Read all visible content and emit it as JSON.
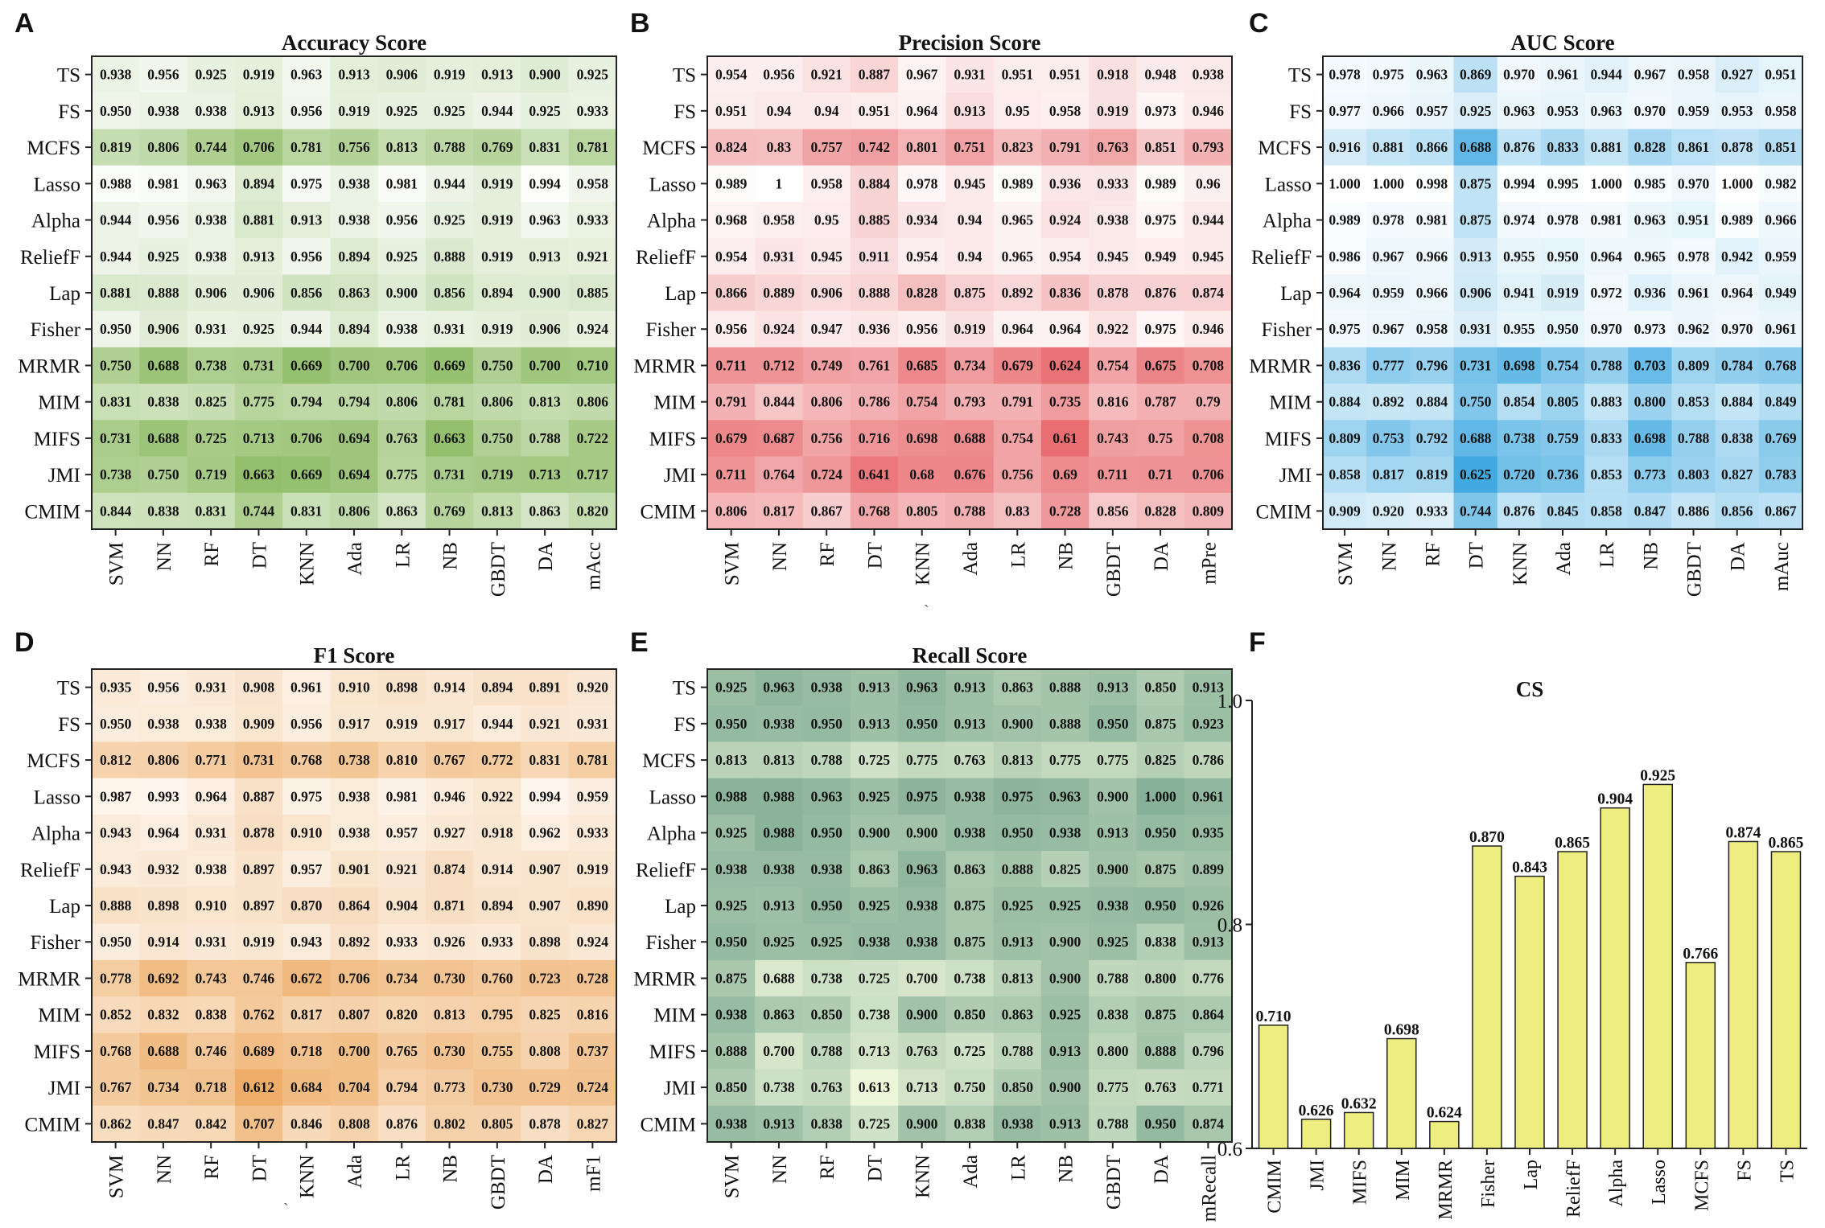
{
  "figure": {
    "row_labels": [
      "TS",
      "FS",
      "MCFS",
      "Lasso",
      "Alpha",
      "ReliefF",
      "Lap",
      "Fisher",
      "MRMR",
      "MIM",
      "MIFS",
      "JMI",
      "CMIM"
    ],
    "stray_marks": [
      "`"
    ]
  },
  "chart_data": [
    {
      "panel": "A",
      "type": "heatmap",
      "title": "Accuracy Score",
      "palette": {
        "low": "#93bf6c",
        "high": "#ffffff",
        "vmin": 0.66,
        "vmax": 1.0
      },
      "rows": [
        "TS",
        "FS",
        "MCFS",
        "Lasso",
        "Alpha",
        "ReliefF",
        "Lap",
        "Fisher",
        "MRMR",
        "MIM",
        "MIFS",
        "JMI",
        "CMIM"
      ],
      "cols": [
        "SVM",
        "NN",
        "RF",
        "DT",
        "KNN",
        "Ada",
        "LR",
        "NB",
        "GBDT",
        "DA",
        "mAcc"
      ],
      "values": [
        [
          "0.938",
          "0.956",
          "0.925",
          "0.919",
          "0.963",
          "0.913",
          "0.906",
          "0.919",
          "0.913",
          "0.900",
          "0.925"
        ],
        [
          "0.950",
          "0.938",
          "0.938",
          "0.913",
          "0.956",
          "0.919",
          "0.925",
          "0.925",
          "0.944",
          "0.925",
          "0.933"
        ],
        [
          "0.819",
          "0.806",
          "0.744",
          "0.706",
          "0.781",
          "0.756",
          "0.813",
          "0.788",
          "0.769",
          "0.831",
          "0.781"
        ],
        [
          "0.988",
          "0.981",
          "0.963",
          "0.894",
          "0.975",
          "0.938",
          "0.981",
          "0.944",
          "0.919",
          "0.994",
          "0.958"
        ],
        [
          "0.944",
          "0.956",
          "0.938",
          "0.881",
          "0.913",
          "0.938",
          "0.956",
          "0.925",
          "0.919",
          "0.963",
          "0.933"
        ],
        [
          "0.944",
          "0.925",
          "0.938",
          "0.913",
          "0.956",
          "0.894",
          "0.925",
          "0.888",
          "0.919",
          "0.913",
          "0.921"
        ],
        [
          "0.881",
          "0.888",
          "0.906",
          "0.906",
          "0.856",
          "0.863",
          "0.900",
          "0.856",
          "0.894",
          "0.900",
          "0.885"
        ],
        [
          "0.950",
          "0.906",
          "0.931",
          "0.925",
          "0.944",
          "0.894",
          "0.938",
          "0.931",
          "0.919",
          "0.906",
          "0.924"
        ],
        [
          "0.750",
          "0.688",
          "0.738",
          "0.731",
          "0.669",
          "0.700",
          "0.706",
          "0.669",
          "0.750",
          "0.700",
          "0.710"
        ],
        [
          "0.831",
          "0.838",
          "0.825",
          "0.775",
          "0.794",
          "0.794",
          "0.806",
          "0.781",
          "0.806",
          "0.813",
          "0.806"
        ],
        [
          "0.731",
          "0.688",
          "0.725",
          "0.713",
          "0.706",
          "0.694",
          "0.763",
          "0.663",
          "0.750",
          "0.788",
          "0.722"
        ],
        [
          "0.738",
          "0.750",
          "0.719",
          "0.663",
          "0.669",
          "0.694",
          "0.775",
          "0.731",
          "0.719",
          "0.713",
          "0.717"
        ],
        [
          "0.844",
          "0.838",
          "0.831",
          "0.744",
          "0.831",
          "0.806",
          "0.863",
          "0.769",
          "0.813",
          "0.863",
          "0.820"
        ]
      ]
    },
    {
      "panel": "B",
      "type": "heatmap",
      "title": "Precision Score",
      "palette": {
        "low": "#e8696d",
        "high": "#ffffff",
        "vmin": 0.6,
        "vmax": 1.0
      },
      "rows": [
        "TS",
        "FS",
        "MCFS",
        "Lasso",
        "Alpha",
        "ReliefF",
        "Lap",
        "Fisher",
        "MRMR",
        "MIM",
        "MIFS",
        "JMI",
        "CMIM"
      ],
      "cols": [
        "SVM",
        "NN",
        "RF",
        "DT",
        "KNN",
        "Ada",
        "LR",
        "NB",
        "GBDT",
        "DA",
        "mPre"
      ],
      "values": [
        [
          "0.954",
          "0.956",
          "0.921",
          "0.887",
          "0.967",
          "0.931",
          "0.951",
          "0.951",
          "0.918",
          "0.948",
          "0.938"
        ],
        [
          "0.951",
          "0.94",
          "0.94",
          "0.951",
          "0.964",
          "0.913",
          "0.95",
          "0.958",
          "0.919",
          "0.973",
          "0.946"
        ],
        [
          "0.824",
          "0.83",
          "0.757",
          "0.742",
          "0.801",
          "0.751",
          "0.823",
          "0.791",
          "0.763",
          "0.851",
          "0.793"
        ],
        [
          "0.989",
          "1",
          "0.958",
          "0.884",
          "0.978",
          "0.945",
          "0.989",
          "0.936",
          "0.933",
          "0.989",
          "0.96"
        ],
        [
          "0.968",
          "0.958",
          "0.95",
          "0.885",
          "0.934",
          "0.94",
          "0.965",
          "0.924",
          "0.938",
          "0.975",
          "0.944"
        ],
        [
          "0.954",
          "0.931",
          "0.945",
          "0.911",
          "0.954",
          "0.94",
          "0.965",
          "0.954",
          "0.945",
          "0.949",
          "0.945"
        ],
        [
          "0.866",
          "0.889",
          "0.906",
          "0.888",
          "0.828",
          "0.875",
          "0.892",
          "0.836",
          "0.878",
          "0.876",
          "0.874"
        ],
        [
          "0.956",
          "0.924",
          "0.947",
          "0.936",
          "0.956",
          "0.919",
          "0.964",
          "0.964",
          "0.922",
          "0.975",
          "0.946"
        ],
        [
          "0.711",
          "0.712",
          "0.749",
          "0.761",
          "0.685",
          "0.734",
          "0.679",
          "0.624",
          "0.754",
          "0.675",
          "0.708"
        ],
        [
          "0.791",
          "0.844",
          "0.806",
          "0.786",
          "0.754",
          "0.793",
          "0.791",
          "0.735",
          "0.816",
          "0.787",
          "0.79"
        ],
        [
          "0.679",
          "0.687",
          "0.756",
          "0.716",
          "0.698",
          "0.688",
          "0.754",
          "0.61",
          "0.743",
          "0.75",
          "0.708"
        ],
        [
          "0.711",
          "0.764",
          "0.724",
          "0.641",
          "0.68",
          "0.676",
          "0.756",
          "0.69",
          "0.711",
          "0.71",
          "0.706"
        ],
        [
          "0.806",
          "0.817",
          "0.867",
          "0.768",
          "0.805",
          "0.788",
          "0.83",
          "0.728",
          "0.856",
          "0.828",
          "0.809"
        ]
      ]
    },
    {
      "panel": "C",
      "type": "heatmap",
      "title": "AUC Score",
      "palette": {
        "low": "#3fa9e0",
        "high": "#ffffff",
        "vmin": 0.62,
        "vmax": 1.0
      },
      "rows": [
        "TS",
        "FS",
        "MCFS",
        "Lasso",
        "Alpha",
        "ReliefF",
        "Lap",
        "Fisher",
        "MRMR",
        "MIM",
        "MIFS",
        "JMI",
        "CMIM"
      ],
      "cols": [
        "SVM",
        "NN",
        "RF",
        "DT",
        "KNN",
        "Ada",
        "LR",
        "NB",
        "GBDT",
        "DA",
        "mAuc"
      ],
      "values": [
        [
          "0.978",
          "0.975",
          "0.963",
          "0.869",
          "0.970",
          "0.961",
          "0.944",
          "0.967",
          "0.958",
          "0.927",
          "0.951"
        ],
        [
          "0.977",
          "0.966",
          "0.957",
          "0.925",
          "0.963",
          "0.953",
          "0.963",
          "0.970",
          "0.959",
          "0.953",
          "0.958"
        ],
        [
          "0.916",
          "0.881",
          "0.866",
          "0.688",
          "0.876",
          "0.833",
          "0.881",
          "0.828",
          "0.861",
          "0.878",
          "0.851"
        ],
        [
          "1.000",
          "1.000",
          "0.998",
          "0.875",
          "0.994",
          "0.995",
          "1.000",
          "0.985",
          "0.970",
          "1.000",
          "0.982"
        ],
        [
          "0.989",
          "0.978",
          "0.981",
          "0.875",
          "0.974",
          "0.978",
          "0.981",
          "0.963",
          "0.951",
          "0.989",
          "0.966"
        ],
        [
          "0.986",
          "0.967",
          "0.966",
          "0.913",
          "0.955",
          "0.950",
          "0.964",
          "0.965",
          "0.978",
          "0.942",
          "0.959"
        ],
        [
          "0.964",
          "0.959",
          "0.966",
          "0.906",
          "0.941",
          "0.919",
          "0.972",
          "0.936",
          "0.961",
          "0.964",
          "0.949"
        ],
        [
          "0.975",
          "0.967",
          "0.958",
          "0.931",
          "0.955",
          "0.950",
          "0.970",
          "0.973",
          "0.962",
          "0.970",
          "0.961"
        ],
        [
          "0.836",
          "0.777",
          "0.796",
          "0.731",
          "0.698",
          "0.754",
          "0.788",
          "0.703",
          "0.809",
          "0.784",
          "0.768"
        ],
        [
          "0.884",
          "0.892",
          "0.884",
          "0.750",
          "0.854",
          "0.805",
          "0.883",
          "0.800",
          "0.853",
          "0.884",
          "0.849"
        ],
        [
          "0.809",
          "0.753",
          "0.792",
          "0.688",
          "0.738",
          "0.759",
          "0.833",
          "0.698",
          "0.788",
          "0.838",
          "0.769"
        ],
        [
          "0.858",
          "0.817",
          "0.819",
          "0.625",
          "0.720",
          "0.736",
          "0.853",
          "0.773",
          "0.803",
          "0.827",
          "0.783"
        ],
        [
          "0.909",
          "0.920",
          "0.933",
          "0.744",
          "0.876",
          "0.845",
          "0.858",
          "0.847",
          "0.886",
          "0.856",
          "0.867"
        ]
      ]
    },
    {
      "panel": "D",
      "type": "heatmap",
      "title": "F1 Score",
      "palette": {
        "low": "#eeae69",
        "high": "#fdf6ee",
        "vmin": 0.61,
        "vmax": 1.0
      },
      "rows": [
        "TS",
        "FS",
        "MCFS",
        "Lasso",
        "Alpha",
        "ReliefF",
        "Lap",
        "Fisher",
        "MRMR",
        "MIM",
        "MIFS",
        "JMI",
        "CMIM"
      ],
      "cols": [
        "SVM",
        "NN",
        "RF",
        "DT",
        "KNN",
        "Ada",
        "LR",
        "NB",
        "GBDT",
        "DA",
        "mF1"
      ],
      "values": [
        [
          "0.935",
          "0.956",
          "0.931",
          "0.908",
          "0.961",
          "0.910",
          "0.898",
          "0.914",
          "0.894",
          "0.891",
          "0.920"
        ],
        [
          "0.950",
          "0.938",
          "0.938",
          "0.909",
          "0.956",
          "0.917",
          "0.919",
          "0.917",
          "0.944",
          "0.921",
          "0.931"
        ],
        [
          "0.812",
          "0.806",
          "0.771",
          "0.731",
          "0.768",
          "0.738",
          "0.810",
          "0.767",
          "0.772",
          "0.831",
          "0.781"
        ],
        [
          "0.987",
          "0.993",
          "0.964",
          "0.887",
          "0.975",
          "0.938",
          "0.981",
          "0.946",
          "0.922",
          "0.994",
          "0.959"
        ],
        [
          "0.943",
          "0.964",
          "0.931",
          "0.878",
          "0.910",
          "0.938",
          "0.957",
          "0.927",
          "0.918",
          "0.962",
          "0.933"
        ],
        [
          "0.943",
          "0.932",
          "0.938",
          "0.897",
          "0.957",
          "0.901",
          "0.921",
          "0.874",
          "0.914",
          "0.907",
          "0.919"
        ],
        [
          "0.888",
          "0.898",
          "0.910",
          "0.897",
          "0.870",
          "0.864",
          "0.904",
          "0.871",
          "0.894",
          "0.907",
          "0.890"
        ],
        [
          "0.950",
          "0.914",
          "0.931",
          "0.919",
          "0.943",
          "0.892",
          "0.933",
          "0.926",
          "0.933",
          "0.898",
          "0.924"
        ],
        [
          "0.778",
          "0.692",
          "0.743",
          "0.746",
          "0.672",
          "0.706",
          "0.734",
          "0.730",
          "0.760",
          "0.723",
          "0.728"
        ],
        [
          "0.852",
          "0.832",
          "0.838",
          "0.762",
          "0.817",
          "0.807",
          "0.820",
          "0.813",
          "0.795",
          "0.825",
          "0.816"
        ],
        [
          "0.768",
          "0.688",
          "0.746",
          "0.689",
          "0.718",
          "0.700",
          "0.765",
          "0.730",
          "0.755",
          "0.808",
          "0.737"
        ],
        [
          "0.767",
          "0.734",
          "0.718",
          "0.612",
          "0.684",
          "0.704",
          "0.794",
          "0.773",
          "0.730",
          "0.729",
          "0.724"
        ],
        [
          "0.862",
          "0.847",
          "0.842",
          "0.707",
          "0.846",
          "0.808",
          "0.876",
          "0.802",
          "0.805",
          "0.878",
          "0.827"
        ]
      ]
    },
    {
      "panel": "E",
      "type": "heatmap",
      "title": "Recall Score",
      "palette": {
        "low": "#f1f8dc",
        "high": "#87b198",
        "vmin": 0.6,
        "vmax": 1.0
      },
      "rows": [
        "TS",
        "FS",
        "MCFS",
        "Lasso",
        "Alpha",
        "ReliefF",
        "Lap",
        "Fisher",
        "MRMR",
        "MIM",
        "MIFS",
        "JMI",
        "CMIM"
      ],
      "cols": [
        "SVM",
        "NN",
        "RF",
        "DT",
        "KNN",
        "Ada",
        "LR",
        "NB",
        "GBDT",
        "DA",
        "mRecall"
      ],
      "values": [
        [
          "0.925",
          "0.963",
          "0.938",
          "0.913",
          "0.963",
          "0.913",
          "0.863",
          "0.888",
          "0.913",
          "0.850",
          "0.913"
        ],
        [
          "0.950",
          "0.938",
          "0.950",
          "0.913",
          "0.950",
          "0.913",
          "0.900",
          "0.888",
          "0.950",
          "0.875",
          "0.923"
        ],
        [
          "0.813",
          "0.813",
          "0.788",
          "0.725",
          "0.775",
          "0.763",
          "0.813",
          "0.775",
          "0.775",
          "0.825",
          "0.786"
        ],
        [
          "0.988",
          "0.988",
          "0.963",
          "0.925",
          "0.975",
          "0.938",
          "0.975",
          "0.963",
          "0.900",
          "1.000",
          "0.961"
        ],
        [
          "0.925",
          "0.988",
          "0.950",
          "0.900",
          "0.900",
          "0.938",
          "0.950",
          "0.938",
          "0.913",
          "0.950",
          "0.935"
        ],
        [
          "0.938",
          "0.938",
          "0.938",
          "0.863",
          "0.963",
          "0.863",
          "0.888",
          "0.825",
          "0.900",
          "0.875",
          "0.899"
        ],
        [
          "0.925",
          "0.913",
          "0.950",
          "0.925",
          "0.938",
          "0.875",
          "0.925",
          "0.925",
          "0.938",
          "0.950",
          "0.926"
        ],
        [
          "0.950",
          "0.925",
          "0.925",
          "0.938",
          "0.938",
          "0.875",
          "0.913",
          "0.900",
          "0.925",
          "0.838",
          "0.913"
        ],
        [
          "0.875",
          "0.688",
          "0.738",
          "0.725",
          "0.700",
          "0.738",
          "0.813",
          "0.900",
          "0.788",
          "0.800",
          "0.776"
        ],
        [
          "0.938",
          "0.863",
          "0.850",
          "0.738",
          "0.900",
          "0.850",
          "0.863",
          "0.925",
          "0.838",
          "0.875",
          "0.864"
        ],
        [
          "0.888",
          "0.700",
          "0.788",
          "0.713",
          "0.763",
          "0.725",
          "0.788",
          "0.913",
          "0.800",
          "0.888",
          "0.796"
        ],
        [
          "0.850",
          "0.738",
          "0.763",
          "0.613",
          "0.713",
          "0.750",
          "0.850",
          "0.900",
          "0.775",
          "0.763",
          "0.771"
        ],
        [
          "0.938",
          "0.913",
          "0.838",
          "0.725",
          "0.900",
          "0.838",
          "0.938",
          "0.913",
          "0.788",
          "0.950",
          "0.874"
        ]
      ]
    },
    {
      "panel": "F",
      "type": "bar",
      "title": "CS",
      "categories": [
        "CMIM",
        "JMI",
        "MIFS",
        "MIM",
        "MRMR",
        "Fisher",
        "Lap",
        "ReliefF",
        "Alpha",
        "Lasso",
        "MCFS",
        "FS",
        "TS"
      ],
      "values": [
        0.71,
        0.626,
        0.632,
        0.698,
        0.624,
        0.87,
        0.843,
        0.865,
        0.904,
        0.925,
        0.766,
        0.874,
        0.865
      ],
      "labels": [
        "0.710",
        "0.626",
        "0.632",
        "0.698",
        "0.624",
        "0.870",
        "0.843",
        "0.865",
        "0.904",
        "0.925",
        "0.766",
        "0.874",
        "0.865"
      ],
      "ylim": [
        0.6,
        1.0
      ],
      "yticks": [
        "0.6",
        "0.8",
        "1.0"
      ],
      "bar_color": "#eded80",
      "xlabel": "",
      "ylabel": ""
    }
  ]
}
